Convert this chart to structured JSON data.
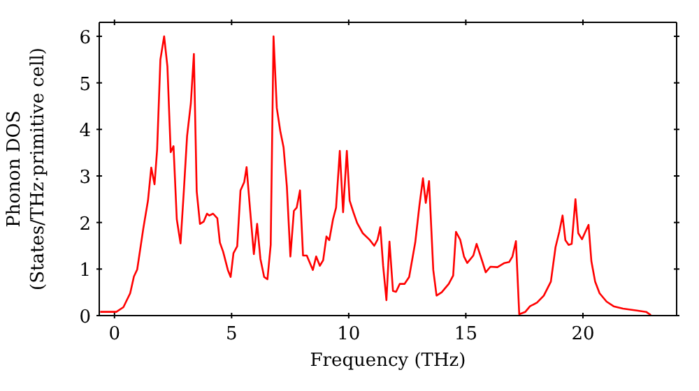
{
  "chart_data": {
    "type": "line",
    "xlabel": "Frequency (THz)",
    "ylabel": "Phonon DOS\n(States/THz·primitive cell)",
    "xlim": [
      -0.65,
      24
    ],
    "ylim": [
      0,
      6.3
    ],
    "xticks": [
      0,
      5,
      10,
      15,
      20
    ],
    "yticks": [
      0,
      1,
      2,
      3,
      4,
      5,
      6
    ],
    "marker": "none",
    "line_style": "solid",
    "series": [
      {
        "color": "#ff0000",
        "x": [
          -0.61,
          0.08,
          0.38,
          0.67,
          0.83,
          0.97,
          1.23,
          1.43,
          1.57,
          1.71,
          1.82,
          1.96,
          2.12,
          2.26,
          2.4,
          2.52,
          2.66,
          2.82,
          2.96,
          3.1,
          3.26,
          3.39,
          3.51,
          3.65,
          3.81,
          3.95,
          4.05,
          4.21,
          4.39,
          4.5,
          4.64,
          4.84,
          4.96,
          5.08,
          5.24,
          5.38,
          5.54,
          5.64,
          5.79,
          5.95,
          6.09,
          6.23,
          6.39,
          6.53,
          6.67,
          6.79,
          6.93,
          7.08,
          7.22,
          7.36,
          7.51,
          7.66,
          7.78,
          7.92,
          8.05,
          8.21,
          8.47,
          8.61,
          8.77,
          8.91,
          9.05,
          9.17,
          9.33,
          9.46,
          9.62,
          9.76,
          9.92,
          10.04,
          10.2,
          10.36,
          10.6,
          10.89,
          11.09,
          11.23,
          11.35,
          11.47,
          11.61,
          11.74,
          11.89,
          12.02,
          12.18,
          12.38,
          12.58,
          12.84,
          13.02,
          13.17,
          13.29,
          13.43,
          13.61,
          13.75,
          13.97,
          14.27,
          14.46,
          14.58,
          14.76,
          14.92,
          15.06,
          15.32,
          15.46,
          15.7,
          15.85,
          16.05,
          16.35,
          16.65,
          16.85,
          16.99,
          17.14,
          17.28,
          17.54,
          17.74,
          18.04,
          18.33,
          18.63,
          18.83,
          18.99,
          19.13,
          19.25,
          19.39,
          19.52,
          19.68,
          19.8,
          19.96,
          20.12,
          20.24,
          20.36,
          20.52,
          20.71,
          21.01,
          21.31,
          21.71,
          22.3,
          22.7,
          22.9
        ],
        "values": [
          0.08,
          0.08,
          0.18,
          0.48,
          0.84,
          0.99,
          1.87,
          2.47,
          3.18,
          2.82,
          3.56,
          5.5,
          6.0,
          5.35,
          3.51,
          3.64,
          2.07,
          1.55,
          2.67,
          3.86,
          4.56,
          5.62,
          2.67,
          1.97,
          2.02,
          2.19,
          2.15,
          2.19,
          2.09,
          1.57,
          1.37,
          0.98,
          0.83,
          1.34,
          1.49,
          2.69,
          2.87,
          3.19,
          2.27,
          1.32,
          1.97,
          1.22,
          0.83,
          0.78,
          1.52,
          6.0,
          4.46,
          3.96,
          3.61,
          2.77,
          1.27,
          2.25,
          2.32,
          2.69,
          1.29,
          1.29,
          0.98,
          1.27,
          1.07,
          1.19,
          1.7,
          1.62,
          2.07,
          2.32,
          3.54,
          2.22,
          3.54,
          2.47,
          2.22,
          1.99,
          1.77,
          1.63,
          1.5,
          1.63,
          1.9,
          1.07,
          0.33,
          1.59,
          0.53,
          0.51,
          0.68,
          0.68,
          0.83,
          1.57,
          2.37,
          2.95,
          2.42,
          2.89,
          0.98,
          0.43,
          0.5,
          0.68,
          0.86,
          1.8,
          1.63,
          1.27,
          1.13,
          1.29,
          1.54,
          1.17,
          0.93,
          1.05,
          1.04,
          1.13,
          1.15,
          1.27,
          1.6,
          0.03,
          0.08,
          0.2,
          0.28,
          0.43,
          0.73,
          1.47,
          1.8,
          2.15,
          1.62,
          1.52,
          1.54,
          2.5,
          1.77,
          1.64,
          1.82,
          1.95,
          1.17,
          0.73,
          0.48,
          0.3,
          0.2,
          0.15,
          0.11,
          0.08,
          0.01
        ]
      }
    ]
  }
}
